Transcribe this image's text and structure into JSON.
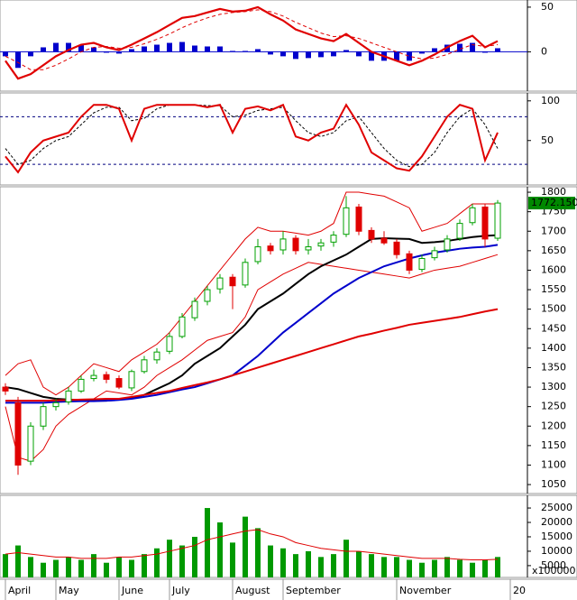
{
  "chart_data": [
    {
      "type": "macd",
      "ylim": [
        -44,
        58
      ],
      "yticks": [
        0,
        50
      ],
      "macd": {
        "color": "#e00000",
        "values": [
          -10,
          -30,
          -25,
          -15,
          -5,
          2,
          8,
          10,
          5,
          2,
          8,
          15,
          22,
          30,
          38,
          40,
          44,
          48,
          45,
          46,
          50,
          42,
          35,
          25,
          20,
          15,
          12,
          20,
          10,
          0,
          -5,
          -10,
          -15,
          -10,
          -3,
          5,
          12,
          18,
          5,
          12,
          null
        ]
      },
      "signal": {
        "color": "#e00000",
        "values": [
          -5,
          -12,
          -20,
          -20,
          -15,
          -8,
          0,
          5,
          6,
          4,
          5,
          9,
          14,
          20,
          27,
          33,
          38,
          42,
          44,
          45,
          47,
          45,
          40,
          33,
          27,
          21,
          17,
          18,
          15,
          10,
          5,
          0,
          -5,
          -8,
          -7,
          -3,
          3,
          8,
          6,
          8,
          null
        ]
      },
      "histogram": {
        "color": "#0000cc",
        "values": [
          -5,
          -18,
          -5,
          5,
          10,
          10,
          8,
          5,
          -1,
          -2,
          3,
          6,
          8,
          10,
          11,
          7,
          6,
          6,
          1,
          1,
          3,
          -3,
          -5,
          -8,
          -7,
          -6,
          -5,
          2,
          -5,
          -10,
          -10,
          -10,
          -10,
          -2,
          4,
          8,
          9,
          10,
          -1,
          4,
          null
        ]
      }
    },
    {
      "type": "stochastic",
      "ylim": [
        -6,
        110
      ],
      "yticks": [
        50,
        100
      ],
      "levels": [
        20,
        80
      ],
      "k": {
        "color": "#e00000",
        "values": [
          30,
          10,
          35,
          50,
          55,
          60,
          80,
          95,
          95,
          90,
          50,
          90,
          95,
          95,
          95,
          95,
          92,
          95,
          60,
          90,
          93,
          88,
          95,
          55,
          50,
          60,
          65,
          95,
          70,
          35,
          25,
          15,
          12,
          30,
          55,
          80,
          95,
          90,
          25,
          60,
          null
        ]
      },
      "d": {
        "color": "#000000",
        "values": [
          40,
          20,
          25,
          40,
          50,
          55,
          70,
          85,
          92,
          92,
          75,
          78,
          90,
          95,
          95,
          95,
          94,
          94,
          80,
          82,
          88,
          90,
          92,
          75,
          60,
          55,
          60,
          75,
          80,
          60,
          40,
          25,
          17,
          20,
          35,
          60,
          80,
          90,
          70,
          40,
          null
        ]
      }
    },
    {
      "type": "candlestick",
      "ylim": [
        1027,
        1814
      ],
      "yticks": [
        1050,
        1100,
        1150,
        1200,
        1250,
        1300,
        1350,
        1400,
        1450,
        1500,
        1550,
        1600,
        1650,
        1700,
        1750,
        1800
      ],
      "up_color": "#00a000",
      "down_color": "#e00000",
      "open": [
        1300,
        1260,
        1110,
        1200,
        1250,
        1262,
        1290,
        1322,
        1332,
        1322,
        1298,
        1340,
        1370,
        1392,
        1430,
        1478,
        1520,
        1552,
        1582,
        1562,
        1622,
        1662,
        1652,
        1682,
        1652,
        1662,
        1672,
        1692,
        1762,
        1702,
        1682,
        1672,
        1642,
        1602,
        1632,
        1652,
        1682,
        1722,
        1762,
        1682,
        null
      ],
      "high": [
        1310,
        1275,
        1210,
        1260,
        1270,
        1300,
        1330,
        1345,
        1340,
        1330,
        1345,
        1380,
        1400,
        1440,
        1490,
        1530,
        1560,
        1590,
        1590,
        1630,
        1680,
        1670,
        1700,
        1690,
        1680,
        1680,
        1700,
        1790,
        1770,
        1710,
        1700,
        1680,
        1650,
        1640,
        1660,
        1690,
        1730,
        1770,
        1770,
        1780,
        null
      ],
      "low": [
        1280,
        1075,
        1100,
        1190,
        1240,
        1255,
        1285,
        1315,
        1310,
        1295,
        1290,
        1335,
        1360,
        1385,
        1425,
        1470,
        1510,
        1540,
        1500,
        1555,
        1615,
        1640,
        1640,
        1640,
        1640,
        1650,
        1660,
        1685,
        1690,
        1670,
        1665,
        1630,
        1590,
        1595,
        1625,
        1645,
        1675,
        1715,
        1660,
        1675,
        null
      ],
      "close": [
        1290,
        1100,
        1200,
        1250,
        1260,
        1290,
        1320,
        1330,
        1320,
        1300,
        1340,
        1370,
        1390,
        1430,
        1480,
        1520,
        1550,
        1580,
        1560,
        1620,
        1660,
        1650,
        1680,
        1650,
        1660,
        1670,
        1690,
        1760,
        1700,
        1680,
        1670,
        1640,
        1600,
        1630,
        1650,
        1680,
        1720,
        1760,
        1680,
        1772.15,
        null
      ],
      "last_label": "1772.150",
      "last_label_color": "#008800",
      "lines": [
        {
          "color": "#e00000",
          "values": [
            1330,
            1360,
            1370,
            1300,
            1280,
            1300,
            1330,
            1360,
            1350,
            1340,
            1370,
            1390,
            1410,
            1440,
            1480,
            1520,
            1560,
            1600,
            1640,
            1680,
            1710,
            1700,
            1700,
            1695,
            1690,
            1700,
            1720,
            1800,
            1800,
            1795,
            1790,
            1775,
            1760,
            1700,
            1710,
            1720,
            1745,
            1770,
            1770,
            1770,
            null
          ]
        },
        {
          "color": "#e00000",
          "values": [
            1250,
            1120,
            1110,
            1140,
            1200,
            1230,
            1250,
            1270,
            1290,
            1285,
            1280,
            1300,
            1330,
            1350,
            1370,
            1395,
            1420,
            1430,
            1440,
            1480,
            1550,
            1570,
            1590,
            1605,
            1620,
            1615,
            1610,
            1605,
            1600,
            1595,
            1590,
            1585,
            1580,
            1590,
            1600,
            1605,
            1610,
            1620,
            1630,
            1640,
            null
          ]
        },
        {
          "color": "#000000",
          "values": [
            1300,
            1295,
            1285,
            1275,
            1270,
            1268,
            1266,
            1265,
            1265,
            1268,
            1272,
            1280,
            1295,
            1310,
            1330,
            1360,
            1380,
            1400,
            1430,
            1460,
            1500,
            1520,
            1540,
            1565,
            1590,
            1610,
            1625,
            1640,
            1660,
            1680,
            1682,
            1681,
            1680,
            1670,
            1672,
            1675,
            1680,
            1685,
            1688,
            1690,
            null
          ]
        },
        {
          "color": "#0000cc",
          "values": [
            1260,
            1260,
            1260,
            1260,
            1262,
            1263,
            1264,
            1264,
            1265,
            1267,
            1270,
            1275,
            1280,
            1287,
            1294,
            1300,
            1310,
            1320,
            1330,
            1355,
            1380,
            1410,
            1440,
            1465,
            1490,
            1515,
            1540,
            1560,
            1580,
            1595,
            1610,
            1620,
            1630,
            1638,
            1645,
            1650,
            1655,
            1658,
            1660,
            1665,
            null
          ]
        },
        {
          "color": "#e00000",
          "values": [
            1265,
            1265,
            1265,
            1265,
            1266,
            1267,
            1268,
            1269,
            1270,
            1270,
            1275,
            1280,
            1285,
            1290,
            1298,
            1305,
            1312,
            1320,
            1330,
            1340,
            1350,
            1360,
            1370,
            1380,
            1390,
            1400,
            1410,
            1420,
            1430,
            1437,
            1445,
            1452,
            1460,
            1465,
            1470,
            1475,
            1480,
            1487,
            1494,
            1500,
            null
          ]
        }
      ]
    },
    {
      "type": "bar",
      "ylim": [
        900,
        29400
      ],
      "yticks": [
        5000,
        10000,
        15000,
        20000,
        25000
      ],
      "unit_label": "x100000",
      "color": "#009900",
      "categories": [
        "April",
        null,
        null,
        null,
        "May",
        null,
        null,
        null,
        null,
        "June",
        null,
        null,
        null,
        "July",
        null,
        null,
        null,
        null,
        "August",
        null,
        null,
        null,
        "September",
        null,
        null,
        null,
        null,
        null,
        null,
        null,
        null,
        "November",
        null,
        null,
        null,
        null,
        null,
        null,
        null,
        null,
        "20"
      ],
      "values": [
        9000,
        12000,
        8000,
        6000,
        7000,
        8000,
        7000,
        9000,
        6000,
        8000,
        7000,
        9000,
        11000,
        14000,
        12000,
        15000,
        25000,
        20000,
        13000,
        22000,
        18000,
        12000,
        11000,
        9000,
        10000,
        8000,
        9000,
        14000,
        10000,
        9000,
        8000,
        8000,
        7000,
        6000,
        7000,
        8000,
        7000,
        6000,
        7000,
        8000,
        null
      ],
      "ma": {
        "color": "#e00000",
        "values": [
          9000,
          9500,
          9000,
          8500,
          8000,
          8000,
          7500,
          7500,
          7500,
          8000,
          8000,
          8500,
          9000,
          10000,
          11000,
          12000,
          14000,
          15000,
          16000,
          17000,
          17500,
          16000,
          15000,
          13000,
          12000,
          11000,
          10500,
          10000,
          10000,
          9500,
          9000,
          8500,
          8000,
          7500,
          7500,
          7500,
          7200,
          7000,
          7000,
          7200,
          null
        ]
      }
    }
  ]
}
